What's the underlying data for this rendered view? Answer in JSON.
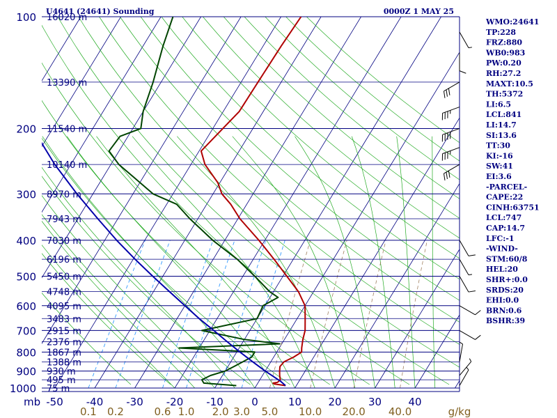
{
  "header": {
    "station_title": "U4641 (24641) Sounding",
    "valid_time": "0000Z  1 MAY 25"
  },
  "colors": {
    "axis": "#000080",
    "isotherm": "#000080",
    "dry_adiabat": "#22aa22",
    "moist_adiabat": "#22aa22",
    "mixing_ratio": "#1e90ff",
    "mixing_ratio_dash": "#a08060",
    "temperature": "#b00000",
    "dewpoint": "#004400",
    "parcel": "#0000aa",
    "wind_barb": "#000000"
  },
  "chart_data": {
    "type": "line",
    "chart_kind": "skew-T log-p sounding",
    "pressure_axis": {
      "unit": "mb",
      "scale": "log",
      "range": [
        1000,
        100
      ],
      "ticks": [
        100,
        200,
        300,
        400,
        500,
        600,
        700,
        800,
        900,
        1000
      ]
    },
    "temperature_axis": {
      "range": [
        -50,
        50
      ],
      "ticks": [
        -50,
        -40,
        -30,
        -20,
        -10,
        0,
        10,
        20,
        30,
        40
      ],
      "tick_labels": [
        "-50",
        "-40",
        "-30",
        "-20",
        "-10",
        "0",
        "10",
        "20",
        "30",
        "40"
      ]
    },
    "mixing_ratio_axis": {
      "unit": "g/kg",
      "ticks": [
        "0.1",
        "0.2",
        "0.6",
        "1.0",
        "2.0",
        "3.0",
        "5.0",
        "10.0",
        "20.0",
        "40.0"
      ]
    },
    "height_labels": [
      {
        "p": 100,
        "label": "16020 m"
      },
      {
        "p": 150,
        "label": "13390 m"
      },
      {
        "p": 200,
        "label": "11540 m"
      },
      {
        "p": 250,
        "label": "10140 m"
      },
      {
        "p": 300,
        "label": "8970 m"
      },
      {
        "p": 350,
        "label": "7943 m"
      },
      {
        "p": 400,
        "label": "7030 m"
      },
      {
        "p": 450,
        "label": "6196 m"
      },
      {
        "p": 500,
        "label": "5450 m"
      },
      {
        "p": 550,
        "label": "4748 m"
      },
      {
        "p": 600,
        "label": "4095 m"
      },
      {
        "p": 650,
        "label": "3483 m"
      },
      {
        "p": 700,
        "label": "2915 m"
      },
      {
        "p": 750,
        "label": "2376 m"
      },
      {
        "p": 800,
        "label": "1867 m"
      },
      {
        "p": 850,
        "label": "1388 m"
      },
      {
        "p": 900,
        "label": "930 m"
      },
      {
        "p": 950,
        "label": "495 m"
      },
      {
        "p": 1000,
        "label": "75 m"
      }
    ],
    "series": [
      {
        "id": "temperature",
        "points": [
          [
            985,
            7.3
          ],
          [
            975,
            4.2
          ],
          [
            970,
            3.8
          ],
          [
            965,
            4.8
          ],
          [
            950,
            5.1
          ],
          [
            925,
            4.3
          ],
          [
            900,
            3.6
          ],
          [
            875,
            3.0
          ],
          [
            850,
            3.3
          ],
          [
            825,
            5.0
          ],
          [
            800,
            6.2
          ],
          [
            780,
            5.6
          ],
          [
            740,
            4.6
          ],
          [
            700,
            3.8
          ],
          [
            650,
            2.0
          ],
          [
            600,
            0.0
          ],
          [
            550,
            -3.8
          ],
          [
            500,
            -9.0
          ],
          [
            450,
            -14.8
          ],
          [
            400,
            -21.5
          ],
          [
            350,
            -29.5
          ],
          [
            320,
            -34.0
          ],
          [
            300,
            -37.8
          ],
          [
            280,
            -40.5
          ],
          [
            250,
            -46.5
          ],
          [
            230,
            -49.5
          ],
          [
            200,
            -47.5
          ],
          [
            180,
            -46.0
          ],
          [
            150,
            -45.8
          ],
          [
            120,
            -45.5
          ],
          [
            100,
            -45.0
          ]
        ]
      },
      {
        "id": "dewpoint",
        "points": [
          [
            985,
            -5.0
          ],
          [
            970,
            -13.5
          ],
          [
            950,
            -14.5
          ],
          [
            925,
            -13.0
          ],
          [
            900,
            -10.0
          ],
          [
            875,
            -8.5
          ],
          [
            850,
            -7.0
          ],
          [
            825,
            -5.5
          ],
          [
            800,
            -5.5
          ],
          [
            780,
            -25.0
          ],
          [
            760,
            -0.5
          ],
          [
            740,
            -10.0
          ],
          [
            700,
            -22.0
          ],
          [
            650,
            -10.0
          ],
          [
            600,
            -10.5
          ],
          [
            570,
            -8.0
          ],
          [
            550,
            -11.0
          ],
          [
            500,
            -17.0
          ],
          [
            450,
            -24.0
          ],
          [
            400,
            -33.0
          ],
          [
            350,
            -42.0
          ],
          [
            320,
            -47.5
          ],
          [
            300,
            -55.0
          ],
          [
            270,
            -62.5
          ],
          [
            250,
            -68.0
          ],
          [
            230,
            -72.5
          ],
          [
            210,
            -72.0
          ],
          [
            200,
            -68.0
          ],
          [
            180,
            -70.0
          ],
          [
            150,
            -72.0
          ],
          [
            120,
            -75.0
          ],
          [
            100,
            -77.0
          ]
        ]
      },
      {
        "id": "parcel",
        "points": [
          [
            985,
            7.3
          ],
          [
            960,
            5.5
          ],
          [
            930,
            2.8
          ],
          [
            900,
            0.0
          ],
          [
            850,
            -4.5
          ],
          [
            800,
            -9.2
          ],
          [
            750,
            -14.0
          ],
          [
            700,
            -19.0
          ],
          [
            650,
            -24.5
          ],
          [
            600,
            -30.0
          ],
          [
            550,
            -36.0
          ],
          [
            500,
            -42.5
          ],
          [
            450,
            -49.5
          ],
          [
            400,
            -57.0
          ],
          [
            350,
            -65.0
          ],
          [
            300,
            -74.0
          ],
          [
            250,
            -84.0
          ],
          [
            200,
            -95.0
          ],
          [
            160,
            -105.0
          ],
          [
            130,
            -113.0
          ]
        ]
      }
    ],
    "wind_barbs": [
      {
        "p": 985,
        "dir": 30,
        "kt": 5
      },
      {
        "p": 925,
        "dir": 40,
        "kt": 5
      },
      {
        "p": 850,
        "dir": 10,
        "kt": 5
      },
      {
        "p": 700,
        "dir": 120,
        "kt": 10
      },
      {
        "p": 600,
        "dir": 120,
        "kt": 10
      },
      {
        "p": 500,
        "dir": 150,
        "kt": 10
      },
      {
        "p": 450,
        "dir": 150,
        "kt": 5
      },
      {
        "p": 400,
        "dir": 150,
        "kt": 10
      },
      {
        "p": 250,
        "dir": 240,
        "kt": 30
      },
      {
        "p": 225,
        "dir": 250,
        "kt": 35
      },
      {
        "p": 200,
        "dir": 250,
        "kt": 40
      },
      {
        "p": 175,
        "dir": 250,
        "kt": 35
      },
      {
        "p": 150,
        "dir": 240,
        "kt": 30
      },
      {
        "p": 125,
        "dir": 180,
        "kt": 10
      },
      {
        "p": 110,
        "dir": 150,
        "kt": 5
      }
    ]
  },
  "indices": [
    "WMO:24641",
    "TP:228",
    "FRZ:880",
    "WB0:983",
    "PW:0.20",
    "RH:27.2",
    "MAXT:10.5",
    "TH:5372",
    "LI:6.5",
    "LCL:841",
    "LI:14.7",
    "SI:13.6",
    "TT:30",
    "KI:-16",
    "SW:41",
    "EI:3.6",
    "-PARCEL-",
    "CAPE:22",
    "CINH:63751",
    "LCL:747",
    "CAP:14.7",
    "LFC:-1",
    "-WIND-",
    "STM:60/8",
    "HEL:20",
    "SHR+:0.0",
    "SRDS:20",
    "EHI:0.0",
    "BRN:0.6",
    "BSHR:39"
  ]
}
